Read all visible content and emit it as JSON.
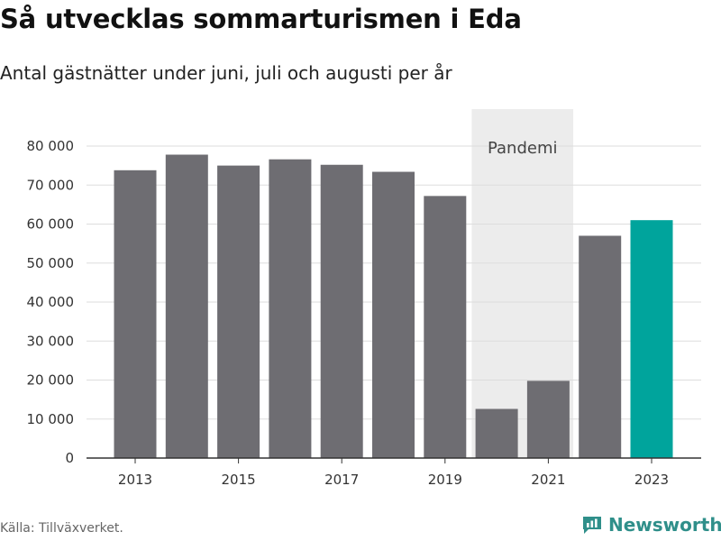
{
  "title": "Så utvecklas sommarturismen i Eda",
  "subtitle": "Antal gästnätter under juni, juli och augusti per år",
  "source": "Källa: Tillväxverket.",
  "brand": {
    "name": "Newsworthy",
    "icon": "newsworthy-chart-logo",
    "color": "#2f8f8a"
  },
  "colors": {
    "bar": "#6e6d72",
    "highlight": "#00a49c",
    "band": "#ececec",
    "axis": "#333333",
    "grid": "#dddddd"
  },
  "chart_data": {
    "type": "bar",
    "title": "Så utvecklas sommarturismen i Eda",
    "subtitle": "Antal gästnätter under juni, juli och augusti per år",
    "categories": [
      "2013",
      "2014",
      "2015",
      "2016",
      "2017",
      "2018",
      "2019",
      "2020",
      "2021",
      "2022",
      "2023"
    ],
    "values": [
      73800,
      77800,
      75000,
      76600,
      75200,
      73400,
      67200,
      12600,
      19800,
      57000,
      61000
    ],
    "highlight_category": "2023",
    "ylim": [
      0,
      80000
    ],
    "yticks": [
      0,
      10000,
      20000,
      30000,
      40000,
      50000,
      60000,
      70000,
      80000
    ],
    "ytick_labels": [
      "0",
      "10 000",
      "20 000",
      "30 000",
      "40 000",
      "50 000",
      "60 000",
      "70 000",
      "80 000"
    ],
    "xtick_labels": [
      "2013",
      "2015",
      "2017",
      "2019",
      "2021",
      "2023"
    ],
    "grid": true,
    "legend": "none",
    "annotations": [
      {
        "type": "shaded_band",
        "label": "Pandemi",
        "from": "2020",
        "to": "2021"
      }
    ]
  }
}
